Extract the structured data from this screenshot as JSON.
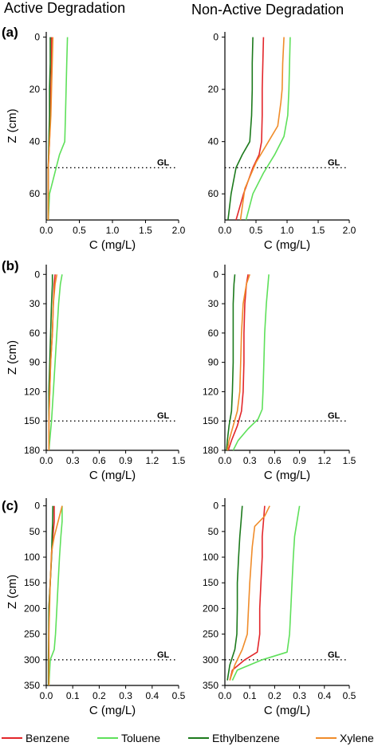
{
  "column_titles": [
    "Active Degradation",
    "Non-Active Degradation"
  ],
  "series_names": [
    "Benzene",
    "Toluene",
    "Ethylbenzene",
    "Xylene"
  ],
  "series_colors": [
    "#e3262a",
    "#5ee05a",
    "#1c7a1c",
    "#f08c2a"
  ],
  "chart_data": [
    {
      "type": "line",
      "panel_label": "(a)",
      "column": "Active Degradation",
      "xlabel": "C (mg/L)",
      "ylabel": "Z (cm)",
      "xlim": [
        0,
        2.0
      ],
      "ylim": [
        70,
        -2
      ],
      "y_inverted": true,
      "xticks": [
        "0.0",
        "0.5",
        "1.0",
        "1.5",
        "2.0"
      ],
      "xtick_values": [
        0,
        0.5,
        1.0,
        1.5,
        2.0
      ],
      "yticks": [
        "0",
        "20",
        "40",
        "60"
      ],
      "ytick_values": [
        0,
        20,
        40,
        60
      ],
      "reference_line": {
        "label": "GL",
        "y": 50
      },
      "series": [
        {
          "name": "Benzene",
          "x": [
            0.08,
            0.08,
            0.07,
            0.06,
            0.05,
            0.03,
            0.03
          ],
          "y": [
            0,
            10,
            20,
            30,
            40,
            50,
            70
          ]
        },
        {
          "name": "Toluene",
          "x": [
            0.32,
            0.31,
            0.3,
            0.29,
            0.28,
            0.2,
            0.05,
            0.03
          ],
          "y": [
            0,
            10,
            20,
            30,
            40,
            45,
            60,
            70
          ]
        },
        {
          "name": "Ethylbenzene",
          "x": [
            0.06,
            0.06,
            0.05,
            0.05,
            0.04,
            0.03,
            0.03
          ],
          "y": [
            0,
            10,
            20,
            30,
            40,
            50,
            70
          ]
        },
        {
          "name": "Xylene",
          "x": [
            0.1,
            0.09,
            0.08,
            0.07,
            0.05,
            0.03,
            0.03
          ],
          "y": [
            0,
            10,
            20,
            30,
            40,
            50,
            70
          ]
        }
      ]
    },
    {
      "type": "line",
      "panel_label": "",
      "column": "Non-Active Degradation",
      "xlabel": "C (mg/L)",
      "ylabel": "",
      "xlim": [
        0,
        2.0
      ],
      "ylim": [
        70,
        -2
      ],
      "y_inverted": true,
      "xticks": [
        "0.0",
        "0.5",
        "1.0",
        "1.5",
        "2.0"
      ],
      "xtick_values": [
        0,
        0.5,
        1.0,
        1.5,
        2.0
      ],
      "yticks": [
        "0",
        "20",
        "40",
        "60"
      ],
      "ytick_values": [
        0,
        20,
        40,
        60
      ],
      "reference_line": {
        "label": "GL",
        "y": 50
      },
      "series": [
        {
          "name": "Benzene",
          "x": [
            0.62,
            0.61,
            0.6,
            0.6,
            0.59,
            0.55,
            0.45,
            0.3,
            0.18
          ],
          "y": [
            0,
            10,
            20,
            30,
            40,
            45,
            50,
            60,
            70
          ]
        },
        {
          "name": "Toluene",
          "x": [
            1.05,
            1.04,
            1.03,
            1.01,
            0.95,
            0.8,
            0.62,
            0.45,
            0.34
          ],
          "y": [
            0,
            10,
            20,
            30,
            38,
            45,
            52,
            60,
            70
          ]
        },
        {
          "name": "Ethylbenzene",
          "x": [
            0.45,
            0.44,
            0.44,
            0.43,
            0.4,
            0.28,
            0.18,
            0.1,
            0.05
          ],
          "y": [
            0,
            10,
            20,
            30,
            40,
            45,
            50,
            60,
            70
          ]
        },
        {
          "name": "Xylene",
          "x": [
            0.95,
            0.93,
            0.92,
            0.9,
            0.85,
            0.7,
            0.5,
            0.32,
            0.25
          ],
          "y": [
            0,
            10,
            20,
            25,
            34,
            40,
            48,
            58,
            70
          ]
        }
      ]
    },
    {
      "type": "line",
      "panel_label": "(b)",
      "column": "Active Degradation",
      "xlabel": "C (mg/L)",
      "ylabel": "Z (cm)",
      "xlim": [
        0,
        1.5
      ],
      "ylim": [
        180,
        -10
      ],
      "y_inverted": true,
      "xticks": [
        "0.0",
        "0.3",
        "0.6",
        "0.9",
        "1.2",
        "1.5"
      ],
      "xtick_values": [
        0,
        0.3,
        0.6,
        0.9,
        1.2,
        1.5
      ],
      "yticks": [
        "0",
        "30",
        "60",
        "90",
        "120",
        "150",
        "180"
      ],
      "ytick_values": [
        0,
        30,
        60,
        90,
        120,
        150,
        180
      ],
      "reference_line": {
        "label": "GL",
        "y": 150
      },
      "series": [
        {
          "name": "Benzene",
          "x": [
            0.1,
            0.09,
            0.08,
            0.07,
            0.05,
            0.04,
            0.03,
            0.03
          ],
          "y": [
            0,
            10,
            30,
            60,
            90,
            120,
            150,
            180
          ]
        },
        {
          "name": "Toluene",
          "x": [
            0.18,
            0.16,
            0.14,
            0.12,
            0.1,
            0.08,
            0.06,
            0.04,
            0.03
          ],
          "y": [
            0,
            10,
            30,
            60,
            90,
            120,
            150,
            170,
            180
          ]
        },
        {
          "name": "Ethylbenzene",
          "x": [
            0.07,
            0.07,
            0.06,
            0.05,
            0.04,
            0.03,
            0.03,
            0.03
          ],
          "y": [
            0,
            10,
            30,
            60,
            90,
            120,
            150,
            180
          ]
        },
        {
          "name": "Xylene",
          "x": [
            0.12,
            0.1,
            0.08,
            0.07,
            0.05,
            0.04,
            0.03,
            0.03
          ],
          "y": [
            0,
            10,
            30,
            60,
            90,
            120,
            150,
            180
          ]
        }
      ]
    },
    {
      "type": "line",
      "panel_label": "",
      "column": "Non-Active Degradation",
      "xlabel": "C (mg/L)",
      "ylabel": "",
      "xlim": [
        0,
        1.5
      ],
      "ylim": [
        180,
        -10
      ],
      "y_inverted": true,
      "xticks": [
        "0.0",
        "0.3",
        "0.6",
        "0.9",
        "1.2",
        "1.5"
      ],
      "xtick_values": [
        0,
        0.3,
        0.6,
        0.9,
        1.2,
        1.5
      ],
      "yticks": [
        "0",
        "30",
        "60",
        "90",
        "120",
        "150",
        "180"
      ],
      "ytick_values": [
        0,
        30,
        60,
        90,
        120,
        150,
        180
      ],
      "reference_line": {
        "label": "GL",
        "y": 150
      },
      "series": [
        {
          "name": "Benzene",
          "x": [
            0.28,
            0.26,
            0.24,
            0.23,
            0.23,
            0.22,
            0.2,
            0.15,
            0.08,
            0.04
          ],
          "y": [
            0,
            10,
            30,
            60,
            90,
            120,
            140,
            155,
            170,
            180
          ]
        },
        {
          "name": "Toluene",
          "x": [
            0.53,
            0.52,
            0.5,
            0.48,
            0.47,
            0.46,
            0.45,
            0.4,
            0.28,
            0.16,
            0.1
          ],
          "y": [
            0,
            10,
            30,
            60,
            90,
            120,
            138,
            148,
            158,
            170,
            180
          ]
        },
        {
          "name": "Ethylbenzene",
          "x": [
            0.12,
            0.11,
            0.1,
            0.1,
            0.1,
            0.09,
            0.08,
            0.05,
            0.03,
            0.02
          ],
          "y": [
            0,
            10,
            30,
            60,
            90,
            120,
            140,
            155,
            170,
            180
          ]
        },
        {
          "name": "Xylene",
          "x": [
            0.3,
            0.26,
            0.22,
            0.2,
            0.19,
            0.18,
            0.15,
            0.1,
            0.05,
            0.03
          ],
          "y": [
            0,
            10,
            30,
            60,
            90,
            120,
            140,
            155,
            170,
            180
          ]
        }
      ]
    },
    {
      "type": "line",
      "panel_label": "(c)",
      "column": "Active Degradation",
      "xlabel": "C (mg/L)",
      "ylabel": "Z (cm)",
      "xlim": [
        0,
        0.5
      ],
      "ylim": [
        350,
        -15
      ],
      "y_inverted": true,
      "xticks": [
        "0.0",
        "0.1",
        "0.2",
        "0.3",
        "0.4",
        "0.5"
      ],
      "xtick_values": [
        0,
        0.1,
        0.2,
        0.3,
        0.4,
        0.5
      ],
      "yticks": [
        "0",
        "50",
        "100",
        "150",
        "200",
        "250",
        "300",
        "350"
      ],
      "ytick_values": [
        0,
        50,
        100,
        150,
        200,
        250,
        300,
        350
      ],
      "reference_line": {
        "label": "GL",
        "y": 300
      },
      "series": [
        {
          "name": "Benzene",
          "x": [
            0.03,
            0.03,
            0.025,
            0.02,
            0.015,
            0.01,
            0.01,
            0.01
          ],
          "y": [
            0,
            30,
            60,
            100,
            150,
            200,
            300,
            350
          ]
        },
        {
          "name": "Toluene",
          "x": [
            0.06,
            0.06,
            0.055,
            0.05,
            0.045,
            0.04,
            0.035,
            0.03,
            0.015,
            0.01
          ],
          "y": [
            0,
            30,
            60,
            100,
            150,
            200,
            250,
            280,
            300,
            350
          ]
        },
        {
          "name": "Ethylbenzene",
          "x": [
            0.025,
            0.024,
            0.022,
            0.02,
            0.015,
            0.01,
            0.008,
            0.008
          ],
          "y": [
            0,
            30,
            60,
            100,
            150,
            200,
            300,
            350
          ]
        },
        {
          "name": "Xylene",
          "x": [
            0.06,
            0.05,
            0.04,
            0.03,
            0.02,
            0.015,
            0.01,
            0.01
          ],
          "y": [
            0,
            20,
            40,
            60,
            90,
            150,
            250,
            350
          ]
        }
      ]
    },
    {
      "type": "line",
      "panel_label": "",
      "column": "Non-Active Degradation",
      "xlabel": "C (mg/L)",
      "ylabel": "",
      "xlim": [
        0,
        0.5
      ],
      "ylim": [
        350,
        -15
      ],
      "y_inverted": true,
      "xticks": [
        "0.0",
        "0.1",
        "0.2",
        "0.3",
        "0.4",
        "0.5"
      ],
      "xtick_values": [
        0,
        0.1,
        0.2,
        0.3,
        0.4,
        0.5
      ],
      "yticks": [
        "0",
        "50",
        "100",
        "150",
        "200",
        "250",
        "300",
        "350"
      ],
      "ytick_values": [
        0,
        50,
        100,
        150,
        200,
        250,
        300,
        350
      ],
      "reference_line": {
        "label": "GL",
        "y": 300
      },
      "series": [
        {
          "name": "Benzene",
          "x": [
            0.16,
            0.155,
            0.15,
            0.15,
            0.145,
            0.14,
            0.14,
            0.13,
            0.08,
            0.03,
            0.02
          ],
          "y": [
            0,
            30,
            60,
            100,
            150,
            200,
            250,
            285,
            300,
            320,
            340
          ]
        },
        {
          "name": "Toluene",
          "x": [
            0.3,
            0.29,
            0.28,
            0.275,
            0.27,
            0.265,
            0.26,
            0.25,
            0.15,
            0.05,
            0.03
          ],
          "y": [
            0,
            30,
            60,
            100,
            150,
            200,
            250,
            285,
            300,
            320,
            340
          ]
        },
        {
          "name": "Ethylbenzene",
          "x": [
            0.07,
            0.065,
            0.06,
            0.055,
            0.05,
            0.05,
            0.048,
            0.04,
            0.02,
            0.01
          ],
          "y": [
            0,
            30,
            60,
            100,
            150,
            200,
            250,
            280,
            310,
            340
          ]
        },
        {
          "name": "Xylene",
          "x": [
            0.18,
            0.16,
            0.12,
            0.11,
            0.1,
            0.095,
            0.09,
            0.07,
            0.04,
            0.02
          ],
          "y": [
            0,
            20,
            40,
            80,
            150,
            200,
            250,
            280,
            310,
            340
          ]
        }
      ]
    }
  ]
}
